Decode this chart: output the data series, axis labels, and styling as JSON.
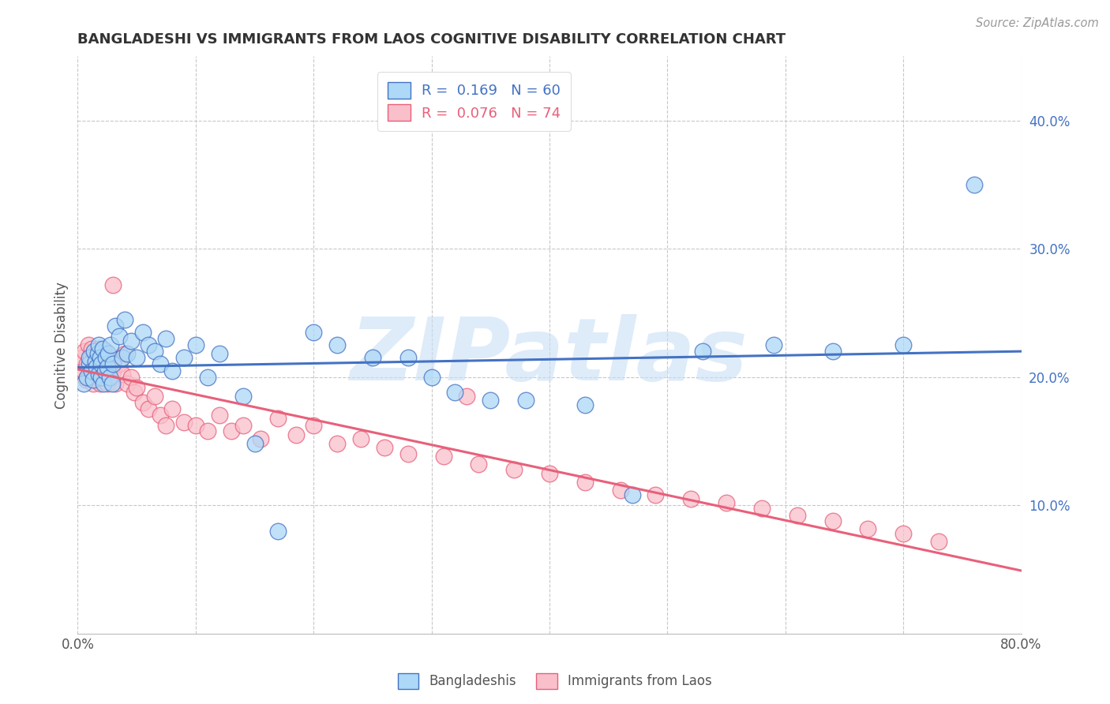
{
  "title": "BANGLADESHI VS IMMIGRANTS FROM LAOS COGNITIVE DISABILITY CORRELATION CHART",
  "source": "Source: ZipAtlas.com",
  "ylabel": "Cognitive Disability",
  "watermark": "ZIPatlas",
  "legend1_label": "R =  0.169   N = 60",
  "legend2_label": "R =  0.076   N = 74",
  "legend1_bottom": "Bangladeshis",
  "legend2_bottom": "Immigrants from Laos",
  "color_blue": "#ADD8F7",
  "color_pink": "#F9C0CB",
  "edge_blue": "#4472C4",
  "edge_pink": "#E8607A",
  "line_blue": "#4472C4",
  "line_pink": "#E8607A",
  "xlim": [
    0.0,
    0.8
  ],
  "ylim": [
    0.0,
    0.45
  ],
  "background_color": "#FFFFFF",
  "grid_color": "#C8C8C8",
  "blue_x": [
    0.005,
    0.008,
    0.01,
    0.01,
    0.012,
    0.013,
    0.014,
    0.015,
    0.016,
    0.017,
    0.018,
    0.018,
    0.019,
    0.02,
    0.02,
    0.021,
    0.022,
    0.023,
    0.024,
    0.025,
    0.026,
    0.027,
    0.028,
    0.029,
    0.03,
    0.032,
    0.035,
    0.038,
    0.04,
    0.042,
    0.045,
    0.05,
    0.055,
    0.06,
    0.065,
    0.07,
    0.075,
    0.08,
    0.09,
    0.1,
    0.11,
    0.12,
    0.14,
    0.15,
    0.17,
    0.2,
    0.22,
    0.25,
    0.28,
    0.3,
    0.32,
    0.35,
    0.38,
    0.43,
    0.47,
    0.53,
    0.59,
    0.64,
    0.7,
    0.76
  ],
  "blue_y": [
    0.195,
    0.2,
    0.21,
    0.215,
    0.205,
    0.198,
    0.22,
    0.212,
    0.208,
    0.218,
    0.202,
    0.225,
    0.215,
    0.2,
    0.21,
    0.222,
    0.195,
    0.205,
    0.215,
    0.208,
    0.218,
    0.2,
    0.225,
    0.195,
    0.21,
    0.24,
    0.232,
    0.215,
    0.245,
    0.218,
    0.228,
    0.215,
    0.235,
    0.225,
    0.22,
    0.21,
    0.23,
    0.205,
    0.215,
    0.225,
    0.2,
    0.218,
    0.185,
    0.148,
    0.08,
    0.235,
    0.225,
    0.215,
    0.215,
    0.2,
    0.188,
    0.182,
    0.182,
    0.178,
    0.108,
    0.22,
    0.225,
    0.22,
    0.225,
    0.35
  ],
  "pink_x": [
    0.004,
    0.005,
    0.006,
    0.007,
    0.008,
    0.009,
    0.01,
    0.011,
    0.012,
    0.012,
    0.013,
    0.014,
    0.015,
    0.015,
    0.016,
    0.017,
    0.018,
    0.018,
    0.019,
    0.02,
    0.021,
    0.022,
    0.023,
    0.024,
    0.025,
    0.025,
    0.026,
    0.028,
    0.03,
    0.032,
    0.035,
    0.038,
    0.04,
    0.042,
    0.045,
    0.048,
    0.05,
    0.055,
    0.06,
    0.065,
    0.07,
    0.075,
    0.08,
    0.09,
    0.1,
    0.11,
    0.12,
    0.13,
    0.14,
    0.155,
    0.17,
    0.185,
    0.2,
    0.22,
    0.24,
    0.26,
    0.28,
    0.31,
    0.34,
    0.37,
    0.4,
    0.43,
    0.46,
    0.49,
    0.52,
    0.55,
    0.58,
    0.61,
    0.64,
    0.67,
    0.7,
    0.73,
    0.03,
    0.33
  ],
  "pink_y": [
    0.215,
    0.205,
    0.22,
    0.198,
    0.21,
    0.225,
    0.2,
    0.215,
    0.205,
    0.222,
    0.195,
    0.21,
    0.218,
    0.202,
    0.215,
    0.2,
    0.222,
    0.21,
    0.195,
    0.205,
    0.215,
    0.2,
    0.212,
    0.22,
    0.195,
    0.208,
    0.2,
    0.215,
    0.205,
    0.195,
    0.21,
    0.202,
    0.218,
    0.195,
    0.2,
    0.188,
    0.192,
    0.18,
    0.175,
    0.185,
    0.17,
    0.162,
    0.175,
    0.165,
    0.162,
    0.158,
    0.17,
    0.158,
    0.162,
    0.152,
    0.168,
    0.155,
    0.162,
    0.148,
    0.152,
    0.145,
    0.14,
    0.138,
    0.132,
    0.128,
    0.125,
    0.118,
    0.112,
    0.108,
    0.105,
    0.102,
    0.098,
    0.092,
    0.088,
    0.082,
    0.078,
    0.072,
    0.272,
    0.185
  ]
}
